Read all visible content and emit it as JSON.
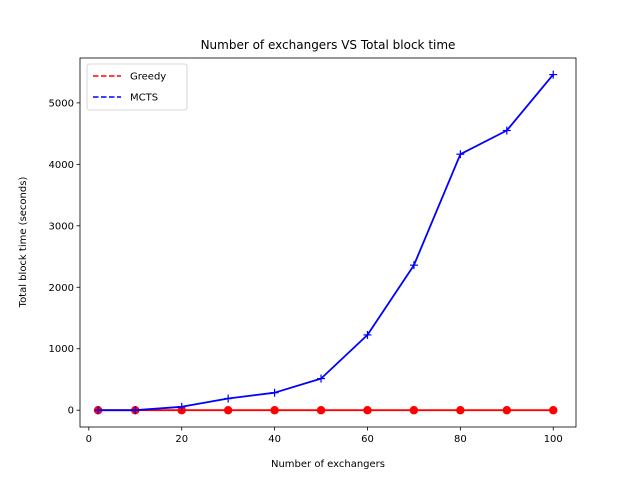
{
  "chart_data": {
    "type": "line",
    "title": "Number of exchangers VS Total block time",
    "xlabel": "Number of exchangers",
    "ylabel": "Total block time (seconds)",
    "xlim": [
      -1.9,
      104.9
    ],
    "ylim": [
      -273,
      5730
    ],
    "xticks": [
      0,
      20,
      40,
      60,
      80,
      100
    ],
    "yticks": [
      0,
      1000,
      2000,
      3000,
      4000,
      5000
    ],
    "grid": false,
    "legend_position": "top-left",
    "x": [
      2,
      10,
      20,
      30,
      40,
      50,
      60,
      70,
      80,
      90,
      100
    ],
    "series": [
      {
        "name": "Greedy",
        "color": "#ff0000",
        "line_style": "dashed",
        "marker": "circle",
        "values": [
          0,
          0,
          0,
          0,
          0,
          0,
          0,
          0,
          0,
          0,
          0
        ]
      },
      {
        "name": "MCTS",
        "color": "#0000ff",
        "line_style": "dashed",
        "marker": "plus",
        "values": [
          0,
          0,
          55,
          190,
          285,
          515,
          1225,
          2360,
          4165,
          4550,
          5460
        ]
      }
    ]
  }
}
